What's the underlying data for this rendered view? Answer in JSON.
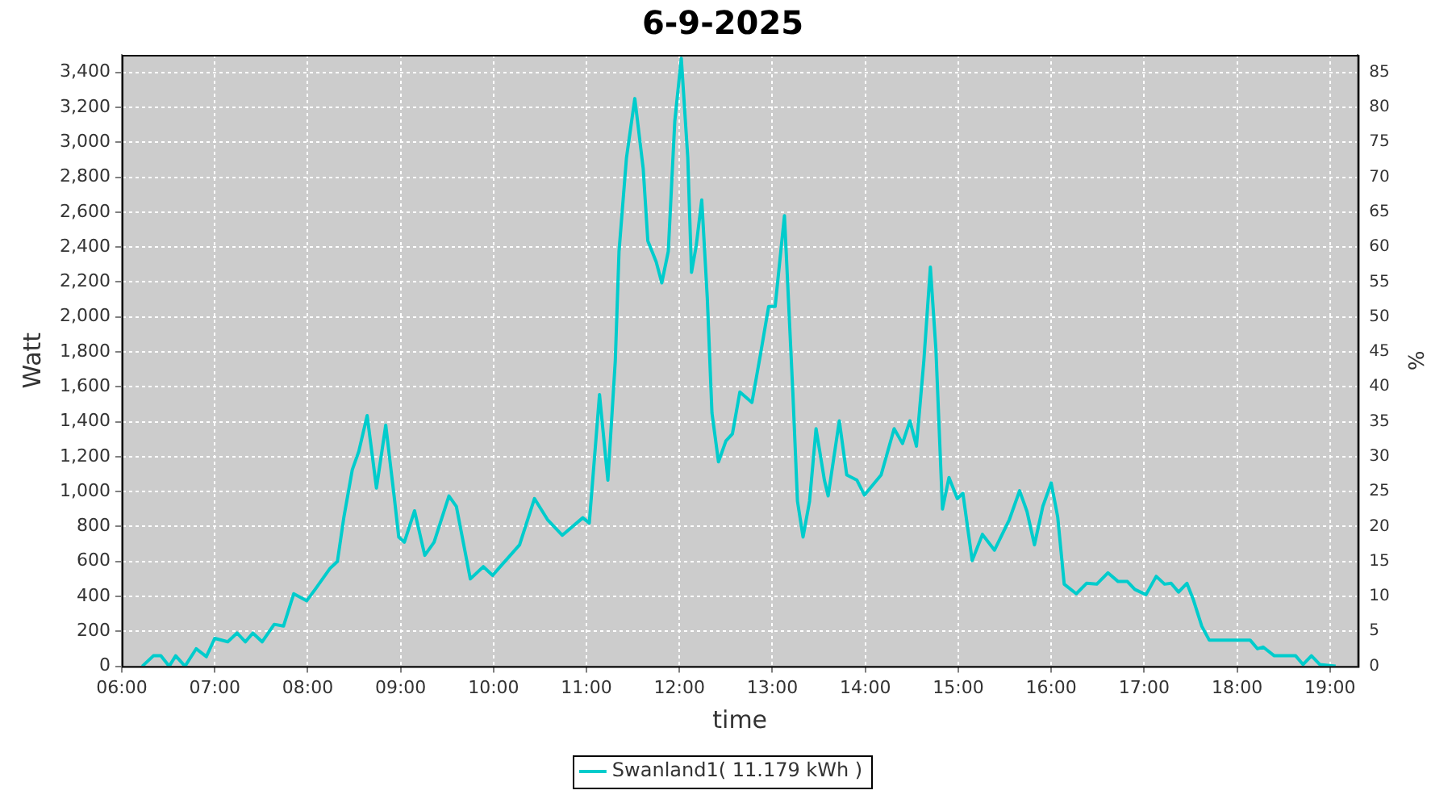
{
  "chart_data": {
    "type": "line",
    "title": "6-9-2025",
    "xlabel": "time",
    "ylabel": "Watt",
    "y2label": "%",
    "x": [
      6.22,
      6.34,
      6.42,
      6.51,
      6.58,
      6.68,
      6.8,
      6.91,
      7.0,
      7.14,
      7.24,
      7.33,
      7.41,
      7.51,
      7.64,
      7.74,
      7.85,
      7.99,
      8.08,
      8.24,
      8.32,
      8.39,
      8.48,
      8.55,
      8.64,
      8.74,
      8.84,
      8.93,
      8.98,
      9.04,
      9.15,
      9.26,
      9.36,
      9.52,
      9.6,
      9.75,
      9.89,
      9.99,
      10.08,
      10.28,
      10.44,
      10.58,
      10.74,
      10.96,
      11.03,
      11.14,
      11.23,
      11.31,
      11.35,
      11.43,
      11.52,
      11.61,
      11.66,
      11.75,
      11.81,
      11.88,
      11.95,
      12.02,
      12.09,
      12.13,
      12.18,
      12.24,
      12.3,
      12.35,
      12.42,
      12.5,
      12.57,
      12.65,
      12.78,
      12.87,
      12.96,
      13.03,
      13.13,
      13.22,
      13.27,
      13.33,
      13.4,
      13.47,
      13.56,
      13.6,
      13.72,
      13.8,
      13.91,
      13.99,
      14.17,
      14.31,
      14.4,
      14.48,
      14.55,
      14.63,
      14.7,
      14.76,
      14.83,
      14.9,
      14.99,
      15.05,
      15.15,
      15.26,
      15.39,
      15.55,
      15.66,
      15.74,
      15.82,
      15.91,
      16.0,
      16.07,
      16.14,
      16.27,
      16.38,
      16.49,
      16.61,
      16.72,
      16.82,
      16.9,
      17.02,
      17.13,
      17.22,
      17.29,
      17.37,
      17.46,
      17.53,
      17.62,
      17.7,
      17.88,
      18.14,
      18.22,
      18.28,
      18.4,
      18.63,
      18.71,
      18.8,
      18.89,
      19.06
    ],
    "series": [
      {
        "name": "Swanland1( 11.179 kWh )",
        "color": "#00cccc",
        "values": [
          0,
          60,
          60,
          0,
          60,
          0,
          100,
          55,
          160,
          140,
          190,
          140,
          190,
          140,
          240,
          230,
          415,
          375,
          440,
          560,
          600,
          855,
          1125,
          1230,
          1435,
          1020,
          1380,
          975,
          740,
          710,
          890,
          635,
          710,
          975,
          915,
          500,
          570,
          520,
          575,
          695,
          960,
          840,
          750,
          850,
          820,
          1555,
          1065,
          1750,
          2375,
          2910,
          3250,
          2850,
          2435,
          2315,
          2195,
          2375,
          3120,
          3480,
          2910,
          2255,
          2405,
          2670,
          2105,
          1450,
          1170,
          1290,
          1330,
          1570,
          1510,
          1780,
          2060,
          2060,
          2580,
          1570,
          945,
          740,
          945,
          1360,
          1065,
          975,
          1405,
          1095,
          1065,
          980,
          1095,
          1360,
          1275,
          1405,
          1260,
          1750,
          2285,
          1810,
          900,
          1080,
          960,
          990,
          605,
          755,
          665,
          840,
          1005,
          885,
          695,
          915,
          1050,
          855,
          470,
          415,
          475,
          470,
          535,
          485,
          485,
          440,
          410,
          515,
          470,
          475,
          425,
          475,
          380,
          230,
          150,
          150,
          150,
          100,
          110,
          60,
          60,
          10,
          60,
          10,
          0
        ]
      }
    ],
    "xlim": [
      6,
      19.3
    ],
    "ylim": [
      0,
      3500
    ],
    "y2lim": [
      0,
      87.5
    ],
    "xticks": [
      {
        "value": 6,
        "label": "06:00"
      },
      {
        "value": 7,
        "label": "07:00"
      },
      {
        "value": 8,
        "label": "08:00"
      },
      {
        "value": 9,
        "label": "09:00"
      },
      {
        "value": 10,
        "label": "10:00"
      },
      {
        "value": 11,
        "label": "11:00"
      },
      {
        "value": 12,
        "label": "12:00"
      },
      {
        "value": 13,
        "label": "13:00"
      },
      {
        "value": 14,
        "label": "14:00"
      },
      {
        "value": 15,
        "label": "15:00"
      },
      {
        "value": 16,
        "label": "16:00"
      },
      {
        "value": 17,
        "label": "17:00"
      },
      {
        "value": 18,
        "label": "18:00"
      },
      {
        "value": 19,
        "label": "19:00"
      }
    ],
    "yticks": [
      0,
      200,
      400,
      600,
      800,
      {
        "value": 1000,
        "label": "1,000"
      },
      {
        "value": 1200,
        "label": "1,200"
      },
      {
        "value": 1400,
        "label": "1,400"
      },
      {
        "value": 1600,
        "label": "1,600"
      },
      {
        "value": 1800,
        "label": "1,800"
      },
      {
        "value": 2000,
        "label": "2,000"
      },
      {
        "value": 2200,
        "label": "2,200"
      },
      {
        "value": 2400,
        "label": "2,400"
      },
      {
        "value": 2600,
        "label": "2,600"
      },
      {
        "value": 2800,
        "label": "2,800"
      },
      {
        "value": 3000,
        "label": "3,000"
      },
      {
        "value": 3200,
        "label": "3,200"
      },
      {
        "value": 3400,
        "label": "3,400"
      }
    ],
    "y2ticks": [
      0,
      5,
      10,
      15,
      20,
      25,
      30,
      35,
      40,
      45,
      50,
      55,
      60,
      65,
      70,
      75,
      80,
      85
    ],
    "grid": true,
    "legend": "bottom",
    "marker": "none",
    "line_style": "solid"
  }
}
